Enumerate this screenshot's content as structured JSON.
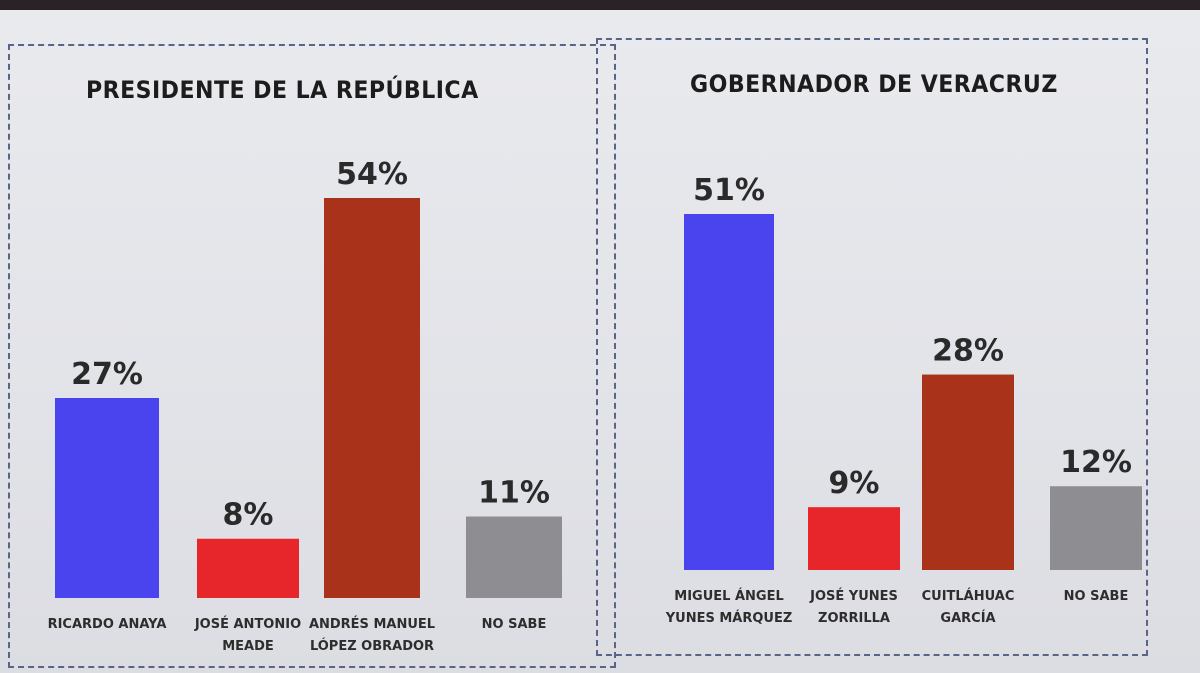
{
  "chart_data": [
    {
      "type": "bar",
      "title": "PRESIDENTE DE LA REPÚBLICA",
      "categories": [
        [
          "RICARDO ANAYA"
        ],
        [
          "JOSÉ ANTONIO",
          "MEADE"
        ],
        [
          "ANDRÉS MANUEL",
          "LÓPEZ OBRADOR"
        ],
        [
          "NO SABE"
        ]
      ],
      "values": [
        27,
        8,
        54,
        11
      ],
      "value_labels": [
        "27%",
        "8%",
        "54%",
        "11%"
      ],
      "colors": [
        "#4a44ee",
        "#e6262a",
        "#a8321a",
        "#8e8e92"
      ],
      "ylim": [
        0,
        54
      ]
    },
    {
      "type": "bar",
      "title": "GOBERNADOR DE VERACRUZ",
      "categories": [
        [
          "MIGUEL ÁNGEL",
          "YUNES MÁRQUEZ"
        ],
        [
          "JOSÉ YUNES",
          "ZORRILLA"
        ],
        [
          "CUITLÁHUAC",
          "GARCÍA"
        ],
        [
          "NO SABE"
        ]
      ],
      "values": [
        51,
        9,
        28,
        12
      ],
      "value_labels": [
        "51%",
        "9%",
        "28%",
        "12%"
      ],
      "colors": [
        "#4a44ee",
        "#e6262a",
        "#a8321a",
        "#8e8e92"
      ],
      "ylim": [
        0,
        51
      ]
    }
  ]
}
